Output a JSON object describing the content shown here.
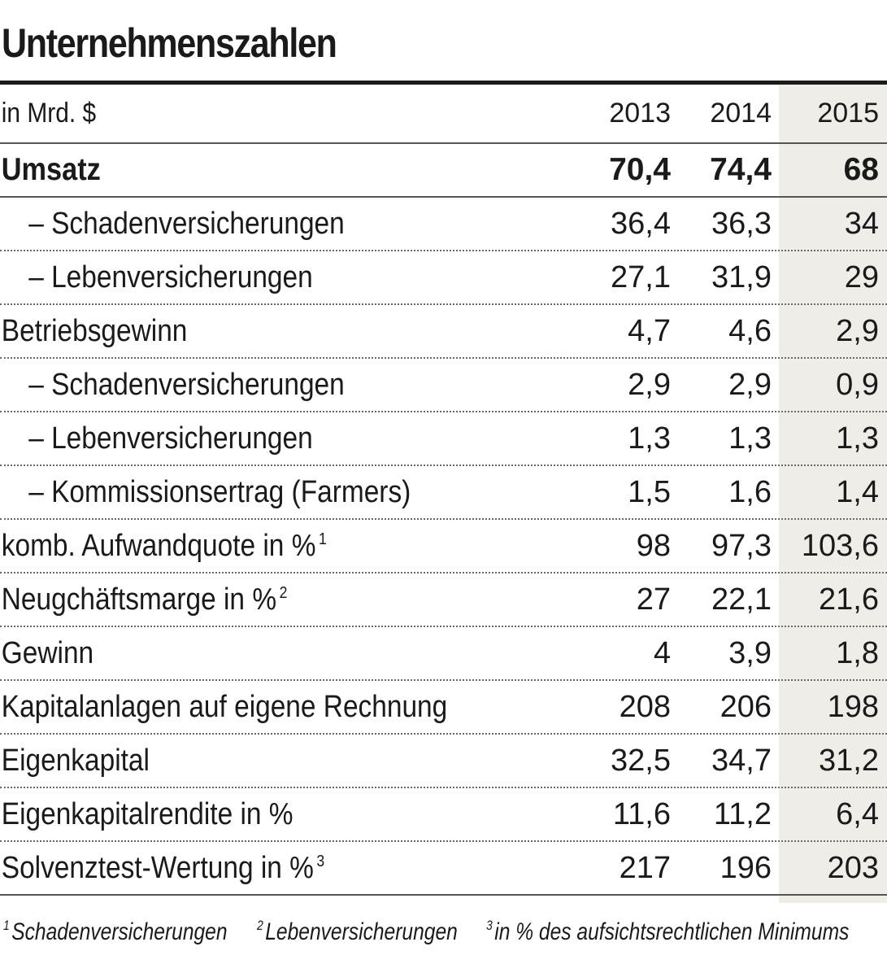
{
  "title": "Unternehmenszahlen",
  "table": {
    "unit_label": "in Mrd. $",
    "years": [
      "2013",
      "2014",
      "2015"
    ],
    "rows": [
      {
        "label": "Umsatz",
        "sup": "",
        "values": [
          "70,4",
          "74,4",
          "68"
        ]
      },
      {
        "label": "– Schadenversicherungen",
        "sup": "",
        "values": [
          "36,4",
          "36,3",
          "34"
        ]
      },
      {
        "label": "– Lebenversicherungen",
        "sup": "",
        "values": [
          "27,1",
          "31,9",
          "29"
        ]
      },
      {
        "label": "Betriebsgewinn",
        "sup": "",
        "values": [
          "4,7",
          "4,6",
          "2,9"
        ]
      },
      {
        "label": "– Schadenversicherungen",
        "sup": "",
        "values": [
          "2,9",
          "2,9",
          "0,9"
        ]
      },
      {
        "label": "– Lebenversicherungen",
        "sup": "",
        "values": [
          "1,3",
          "1,3",
          "1,3"
        ]
      },
      {
        "label": "– Kommissionsertrag (Farmers)",
        "sup": "",
        "values": [
          "1,5",
          "1,6",
          "1,4"
        ]
      },
      {
        "label": "komb. Aufwandquote in %",
        "sup": "1",
        "values": [
          "98",
          "97,3",
          "103,6"
        ]
      },
      {
        "label": "Neugchäftsmarge in %",
        "sup": "2",
        "values": [
          "27",
          "22,1",
          "21,6"
        ]
      },
      {
        "label": "Gewinn",
        "sup": "",
        "values": [
          "4",
          "3,9",
          "1,8"
        ]
      },
      {
        "label": "Kapitalanlagen auf eigene Rechnung",
        "sup": "",
        "values": [
          "208",
          "206",
          "198"
        ]
      },
      {
        "label": "Eigenkapital",
        "sup": "",
        "values": [
          "32,5",
          "34,7",
          "31,2"
        ]
      },
      {
        "label": "Eigenkapitalrendite in %",
        "sup": "",
        "values": [
          "11,6",
          "11,2",
          "6,4"
        ]
      },
      {
        "label": "Solvenztest-Wertung in %",
        "sup": "3",
        "values": [
          "217",
          "196",
          "203"
        ]
      }
    ]
  },
  "footnotes": [
    {
      "mark": "1",
      "text": "Schadenversicherungen"
    },
    {
      "mark": "2",
      "text": "Lebenversicherungen"
    },
    {
      "mark": "3",
      "text": "in % des aufsichtsrechtlichen Minimums"
    }
  ],
  "colors": {
    "highlight_column": "#efede8",
    "text": "#1a1a1a"
  },
  "chart_data": {
    "type": "table",
    "title": "Unternehmenszahlen",
    "unit": "in Mrd. $",
    "columns": [
      "2013",
      "2014",
      "2015"
    ],
    "highlighted_column": "2015",
    "rows": [
      {
        "label": "Umsatz",
        "values": [
          70.4,
          74.4,
          68
        ]
      },
      {
        "label": "– Schadenversicherungen",
        "values": [
          36.4,
          36.3,
          34
        ]
      },
      {
        "label": "– Lebenversicherungen",
        "values": [
          27.1,
          31.9,
          29
        ]
      },
      {
        "label": "Betriebsgewinn",
        "values": [
          4.7,
          4.6,
          2.9
        ]
      },
      {
        "label": "– Schadenversicherungen",
        "values": [
          2.9,
          2.9,
          0.9
        ]
      },
      {
        "label": "– Lebenversicherungen",
        "values": [
          1.3,
          1.3,
          1.3
        ]
      },
      {
        "label": "– Kommissionsertrag (Farmers)",
        "values": [
          1.5,
          1.6,
          1.4
        ]
      },
      {
        "label": "komb. Aufwandquote in %",
        "values": [
          98,
          97.3,
          103.6
        ]
      },
      {
        "label": "Neugchäftsmarge in %",
        "values": [
          27,
          22.1,
          21.6
        ]
      },
      {
        "label": "Gewinn",
        "values": [
          4,
          3.9,
          1.8
        ]
      },
      {
        "label": "Kapitalanlagen auf eigene Rechnung",
        "values": [
          208,
          206,
          198
        ]
      },
      {
        "label": "Eigenkapital",
        "values": [
          32.5,
          34.7,
          31.2
        ]
      },
      {
        "label": "Eigenkapitalrendite in %",
        "values": [
          11.6,
          11.2,
          6.4
        ]
      },
      {
        "label": "Solvenztest-Wertung in %",
        "values": [
          217,
          196,
          203
        ]
      }
    ]
  }
}
